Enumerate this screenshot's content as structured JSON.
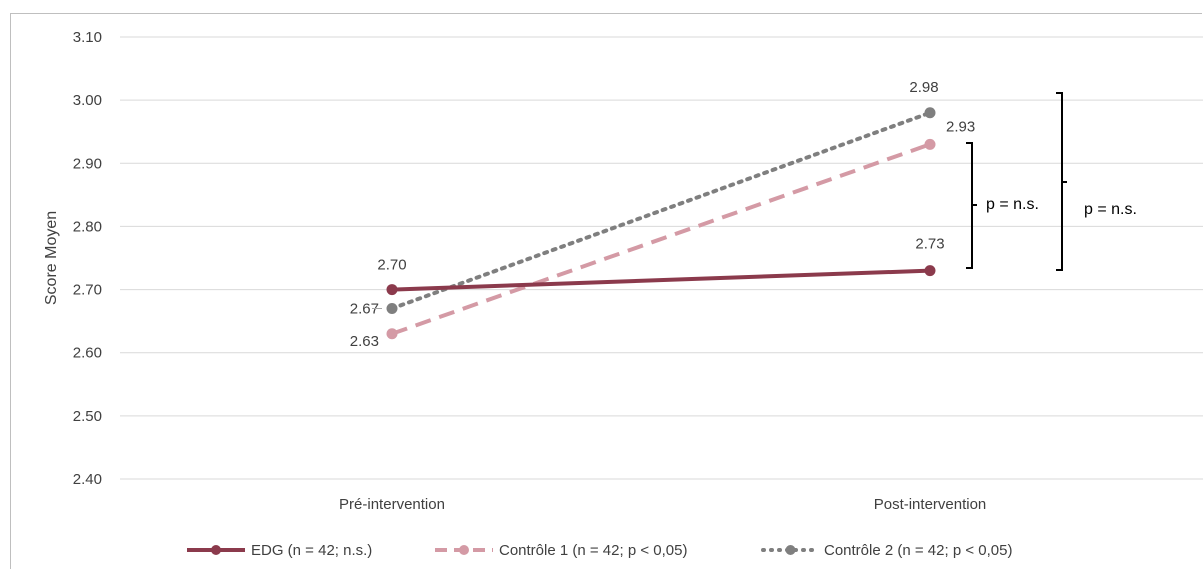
{
  "chart_data": {
    "type": "line",
    "ylabel": "Score Moyen",
    "xlabel": "",
    "ylim": [
      2.4,
      3.1
    ],
    "yticks": [
      "3.10",
      "3.00",
      "2.90",
      "2.80",
      "2.70",
      "2.60",
      "2.50",
      "2.40"
    ],
    "categories": [
      "Pré-intervention",
      "Post-intervention"
    ],
    "grid": true,
    "legend_position": "bottom",
    "series": [
      {
        "name": "EDG (n = 42; n.s.)",
        "values": [
          2.7,
          2.73
        ],
        "labels": [
          "2.70",
          "2.73"
        ],
        "color": "#8b3a4c",
        "style": "solid"
      },
      {
        "name": "Contrôle 1 (n = 42; p < 0,05)",
        "values": [
          2.63,
          2.93
        ],
        "labels": [
          "2.63",
          "2.93"
        ],
        "color": "#d49aa5",
        "style": "dashed"
      },
      {
        "name": "Contrôle 2 (n = 42; p < 0,05)",
        "values": [
          2.67,
          2.98
        ],
        "labels": [
          "2.67",
          "2.98"
        ],
        "color": "#7f7f7f",
        "style": "dotted"
      }
    ],
    "annotations": [
      "p = n.s.",
      "p = n.s."
    ]
  }
}
